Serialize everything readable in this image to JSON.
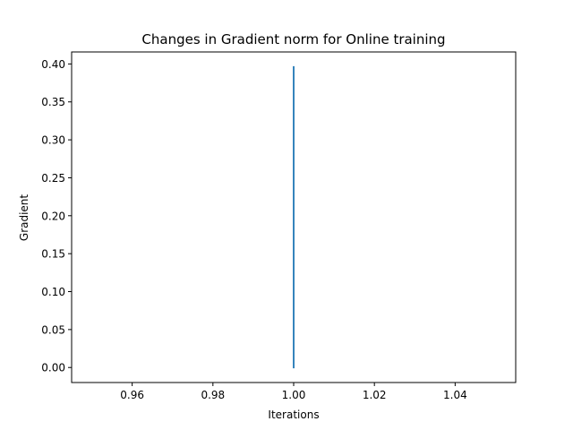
{
  "chart_data": {
    "type": "line",
    "title": "Changes in Gradient norm for Online training",
    "xlabel": "Iterations",
    "ylabel": "Gradient",
    "xlim": [
      0.945,
      1.055
    ],
    "ylim": [
      -0.0198,
      0.4158
    ],
    "x_ticks": [
      0.96,
      0.98,
      1.0,
      1.02,
      1.04
    ],
    "x_tick_labels": [
      "0.96",
      "0.98",
      "1.00",
      "1.02",
      "1.04"
    ],
    "y_ticks": [
      0.0,
      0.05,
      0.1,
      0.15,
      0.2,
      0.25,
      0.3,
      0.35,
      0.4
    ],
    "y_tick_labels": [
      "0.00",
      "0.05",
      "0.10",
      "0.15",
      "0.20",
      "0.25",
      "0.30",
      "0.35",
      "0.40"
    ],
    "grid": false,
    "series": [
      {
        "color": "#1f77b4",
        "x": [
          1.0,
          1.0
        ],
        "y": [
          0.0,
          0.396
        ]
      }
    ]
  }
}
